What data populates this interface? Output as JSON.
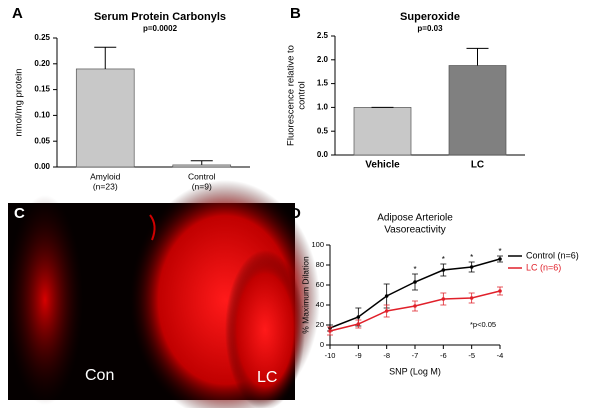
{
  "chart_data": [
    {
      "type": "bar",
      "panel": "A",
      "title": "Serum Protein Carbonyls",
      "annotation": "p=0.0002",
      "ylabel": [
        "nmol/mg protein"
      ],
      "categories": [
        "Amyloid",
        "Control"
      ],
      "category_notes": [
        "(n=23)",
        "(n=9)"
      ],
      "values": [
        0.19,
        0.004
      ],
      "errors": [
        0.042,
        0.008
      ],
      "colors": [
        "#c8c8c8",
        "#c8c8c8"
      ],
      "ylim": [
        0,
        0.25
      ],
      "yticks": [
        {
          "value": 0,
          "label": "0.00"
        },
        {
          "value": 0.05,
          "label": "0.05"
        },
        {
          "value": 0.1,
          "label": "0.10"
        },
        {
          "value": 0.15,
          "label": "0.15"
        },
        {
          "value": 0.2,
          "label": "0.20"
        },
        {
          "value": 0.25,
          "label": "0.25"
        }
      ]
    },
    {
      "type": "bar",
      "panel": "B",
      "title": "Superoxide",
      "annotation": "p=0.03",
      "ylabel": [
        "Fluorescence relative to",
        "control"
      ],
      "categories": [
        "Vehicle",
        "LC"
      ],
      "values": [
        1.0,
        1.88
      ],
      "errors": [
        0,
        0.36
      ],
      "colors": [
        "#c8c8c8",
        "#808080"
      ],
      "ylim": [
        0,
        2.5
      ],
      "yticks": [
        {
          "value": 0,
          "label": "0.0"
        },
        {
          "value": 0.5,
          "label": "0.5"
        },
        {
          "value": 1,
          "label": "1.0"
        },
        {
          "value": 1.5,
          "label": "1.5"
        },
        {
          "value": 2,
          "label": "2.0"
        },
        {
          "value": 2.5,
          "label": "2.5"
        }
      ]
    },
    {
      "type": "image",
      "panel": "C",
      "labels": [
        "Con",
        "LC"
      ]
    },
    {
      "type": "line",
      "panel": "D",
      "title": [
        "Adipose Arteriole",
        "Vasoreactivity"
      ],
      "xlabel": "SNP (Log M)",
      "ylabel": "% Maximum Dilation",
      "x": [
        -10,
        -9,
        -8,
        -7,
        -6,
        -5,
        -4
      ],
      "series": [
        {
          "name": "Control (n=6)",
          "color": "#000000",
          "values": [
            17,
            28,
            49,
            63,
            75,
            78,
            86
          ],
          "errors": [
            3,
            9,
            12,
            8,
            6,
            5,
            3
          ]
        },
        {
          "name": "LC (n=6)",
          "color": "#e0202a",
          "values": [
            14,
            21,
            34,
            39,
            46,
            47,
            54
          ],
          "errors": [
            4,
            4,
            6,
            5,
            6,
            5,
            4
          ]
        }
      ],
      "markers": {
        "x": [
          -7,
          -6,
          -5,
          -4
        ],
        "label": "*"
      },
      "annotation": "*p<0.05",
      "xlim": [
        -10,
        -4
      ],
      "xticks": [
        -10,
        -9,
        -8,
        -7,
        -6,
        -5,
        -4
      ],
      "ylim": [
        0,
        100
      ],
      "yticks": [
        0,
        20,
        40,
        60,
        80,
        100
      ]
    }
  ]
}
